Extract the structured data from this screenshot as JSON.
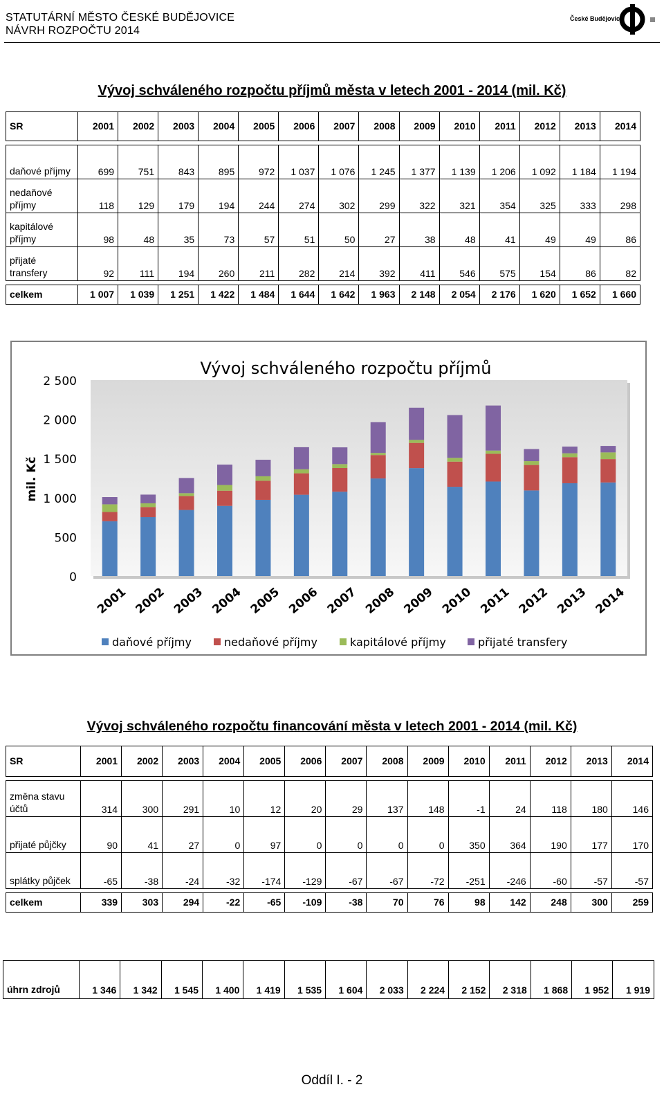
{
  "header": {
    "city": "STATUTÁRNÍ MĚSTO ČESKÉ BUDĚJOVICE",
    "doc": "NÁVRH ROZPOČTU 2014",
    "logo_text": "České Budějovice",
    "logo_icon": "cb-logo-icon"
  },
  "table1": {
    "title": "Vývoj schváleného rozpočtu příjmů města v letech 2001 - 2014 (mil. Kč)",
    "corner": "SR",
    "years": [
      "2001",
      "2002",
      "2003",
      "2004",
      "2005",
      "2006",
      "2007",
      "2008",
      "2009",
      "2010",
      "2011",
      "2012",
      "2013",
      "2014"
    ],
    "rows": [
      {
        "label": "daňové příjmy",
        "values": [
          "699",
          "751",
          "843",
          "895",
          "972",
          "1 037",
          "1 076",
          "1 245",
          "1 377",
          "1 139",
          "1 206",
          "1 092",
          "1 184",
          "1 194"
        ]
      },
      {
        "label": "nedaňové příjmy",
        "values": [
          "118",
          "129",
          "179",
          "194",
          "244",
          "274",
          "302",
          "299",
          "322",
          "321",
          "354",
          "325",
          "333",
          "298"
        ]
      },
      {
        "label": "kapitálové příjmy",
        "values": [
          "98",
          "48",
          "35",
          "73",
          "57",
          "51",
          "50",
          "27",
          "38",
          "48",
          "41",
          "49",
          "49",
          "86"
        ]
      },
      {
        "label": "přijaté transfery",
        "values": [
          "92",
          "111",
          "194",
          "260",
          "211",
          "282",
          "214",
          "392",
          "411",
          "546",
          "575",
          "154",
          "86",
          "82"
        ]
      }
    ],
    "total": {
      "label": "celkem",
      "values": [
        "1 007",
        "1 039",
        "1 251",
        "1 422",
        "1 484",
        "1 644",
        "1 642",
        "1 963",
        "2 148",
        "2 054",
        "2 176",
        "1 620",
        "1 652",
        "1 660"
      ]
    }
  },
  "chart_data": {
    "type": "bar",
    "stacked": true,
    "title": "Vývoj schváleného rozpočtu příjmů",
    "ylabel": "mil. Kč",
    "ylim": [
      0,
      2500
    ],
    "yticks": [
      "0",
      "500",
      "1 000",
      "1 500",
      "2 000",
      "2 500"
    ],
    "categories": [
      "2001",
      "2002",
      "2003",
      "2004",
      "2005",
      "2006",
      "2007",
      "2008",
      "2009",
      "2010",
      "2011",
      "2012",
      "2013",
      "2014"
    ],
    "series": [
      {
        "name": "daňové příjmy",
        "color": "#4f81bd",
        "values": [
          699,
          751,
          843,
          895,
          972,
          1037,
          1076,
          1245,
          1377,
          1139,
          1206,
          1092,
          1184,
          1194
        ]
      },
      {
        "name": "nedaňové příjmy",
        "color": "#c0504d",
        "values": [
          118,
          129,
          179,
          194,
          244,
          274,
          302,
          299,
          322,
          321,
          354,
          325,
          333,
          298
        ]
      },
      {
        "name": "kapitálové příjmy",
        "color": "#9bbb59",
        "values": [
          98,
          48,
          35,
          73,
          57,
          51,
          50,
          27,
          38,
          48,
          41,
          49,
          49,
          86
        ]
      },
      {
        "name": "přijaté transfery",
        "color": "#8064a2",
        "values": [
          92,
          111,
          194,
          260,
          211,
          282,
          214,
          392,
          411,
          546,
          575,
          154,
          86,
          82
        ]
      }
    ],
    "legend": "bottom",
    "grid": false
  },
  "table2": {
    "title": "Vývoj schváleného rozpočtu financování města v letech 2001 - 2014 (mil. Kč)",
    "corner": "SR",
    "years": [
      "2001",
      "2002",
      "2003",
      "2004",
      "2005",
      "2006",
      "2007",
      "2008",
      "2009",
      "2010",
      "2011",
      "2012",
      "2013",
      "2014"
    ],
    "rows": [
      {
        "label": "změna stavu účtů",
        "values": [
          "314",
          "300",
          "291",
          "10",
          "12",
          "20",
          "29",
          "137",
          "148",
          "-1",
          "24",
          "118",
          "180",
          "146"
        ]
      },
      {
        "label": "přijaté půjčky",
        "values": [
          "90",
          "41",
          "27",
          "0",
          "97",
          "0",
          "0",
          "0",
          "0",
          "350",
          "364",
          "190",
          "177",
          "170"
        ]
      },
      {
        "label": "splátky půjček",
        "values": [
          "-65",
          "-38",
          "-24",
          "-32",
          "-174",
          "-129",
          "-67",
          "-67",
          "-72",
          "-251",
          "-246",
          "-60",
          "-57",
          "-57"
        ]
      }
    ],
    "total": {
      "label": "celkem",
      "values": [
        "339",
        "303",
        "294",
        "-22",
        "-65",
        "-109",
        "-38",
        "70",
        "76",
        "98",
        "142",
        "248",
        "300",
        "259"
      ]
    }
  },
  "table3": {
    "label": "úhrn zdrojů",
    "values": [
      "1 346",
      "1 342",
      "1 545",
      "1 400",
      "1 419",
      "1 535",
      "1 604",
      "2 033",
      "2 224",
      "2 152",
      "2 318",
      "1 868",
      "1 952",
      "1 919"
    ]
  },
  "footer": "Oddíl I. - 2"
}
